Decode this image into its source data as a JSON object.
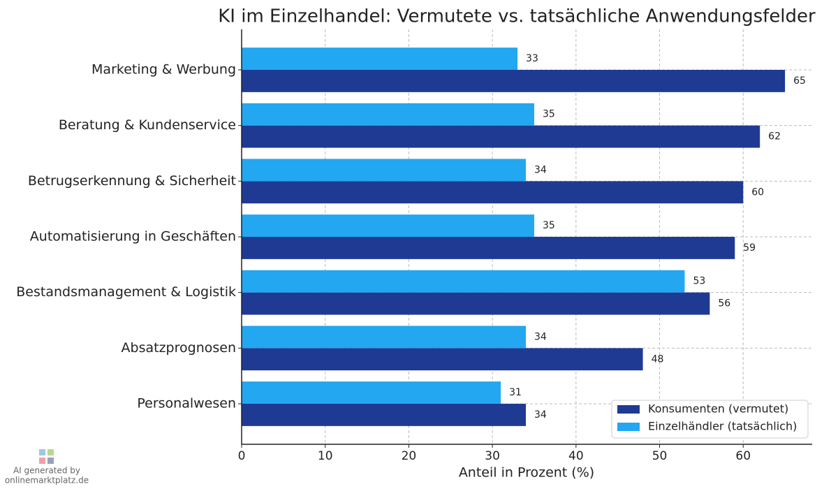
{
  "chart_data": {
    "type": "barh",
    "title": "KI im Einzelhandel: Vermutete vs. tatsächliche Anwendungsfelder",
    "xlabel": "Anteil in Prozent (%)",
    "categories": [
      "Marketing & Werbung",
      "Beratung & Kundenservice",
      "Betrugserkennung & Sicherheit",
      "Automatisierung in Geschäften",
      "Bestandsmanagement & Logistik",
      "Absatzprognosen",
      "Personalwesen"
    ],
    "series": [
      {
        "name": "Konsumenten (vermutet)",
        "color": "#1f3a93",
        "values": [
          65,
          62,
          60,
          59,
          56,
          48,
          34
        ]
      },
      {
        "name": "Einzelhändler (tatsächlich)",
        "color": "#22a7f0",
        "values": [
          33,
          35,
          34,
          35,
          53,
          34,
          31
        ]
      }
    ],
    "xlim": [
      0,
      68.25
    ],
    "xticks": [
      0,
      10,
      20,
      30,
      40,
      50,
      60
    ],
    "grid": true,
    "legend": "lower right"
  },
  "watermark": {
    "line1": "AI generated by",
    "line2": "onlinemarktplatz.de"
  }
}
